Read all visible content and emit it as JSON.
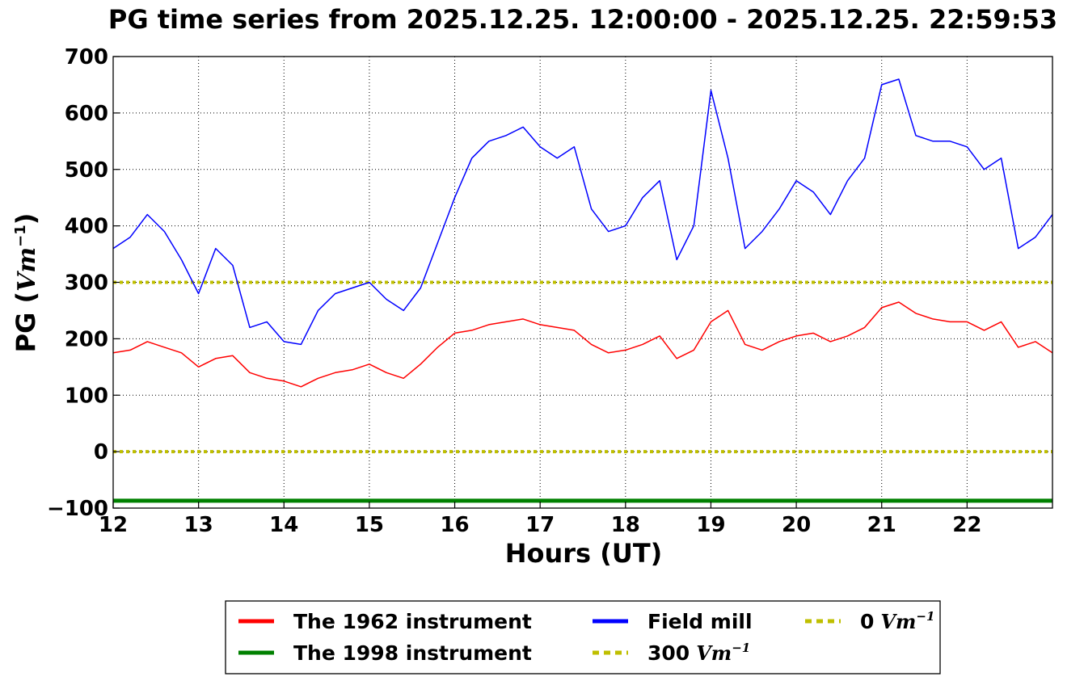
{
  "chart_data": {
    "type": "line",
    "title": "PG time series from 2025.12.25. 12:00:00 - 2025.12.25. 22:59:53",
    "xlabel": "Hours (UT)",
    "ylabel": {
      "prefix": "PG (",
      "unit": "Vm",
      "exp": "−1",
      "suffix": ")"
    },
    "xlim": [
      12,
      23
    ],
    "ylim": [
      -100,
      700
    ],
    "xticks": [
      12,
      13,
      14,
      15,
      16,
      17,
      18,
      19,
      20,
      21,
      22
    ],
    "yticks": [
      -100,
      0,
      100,
      200,
      300,
      400,
      500,
      600,
      700
    ],
    "ytick_labels": [
      "−100",
      "0",
      "100",
      "200",
      "300",
      "400",
      "500",
      "600",
      "700"
    ],
    "grid": true,
    "legend_position": "below chart",
    "series": [
      {
        "name": "The 1962 instrument",
        "color": "#ff0000",
        "x": [
          12.0,
          12.2,
          12.4,
          12.6,
          12.8,
          13.0,
          13.2,
          13.4,
          13.6,
          13.8,
          14.0,
          14.2,
          14.4,
          14.6,
          14.8,
          15.0,
          15.2,
          15.4,
          15.6,
          15.8,
          16.0,
          16.2,
          16.4,
          16.6,
          16.8,
          17.0,
          17.2,
          17.4,
          17.6,
          17.8,
          18.0,
          18.2,
          18.4,
          18.6,
          18.8,
          19.0,
          19.2,
          19.4,
          19.6,
          19.8,
          20.0,
          20.2,
          20.4,
          20.6,
          20.8,
          21.0,
          21.2,
          21.4,
          21.6,
          21.8,
          22.0,
          22.2,
          22.4,
          22.6,
          22.8,
          23.0
        ],
        "values": [
          175,
          180,
          195,
          185,
          175,
          150,
          165,
          170,
          140,
          130,
          125,
          115,
          130,
          140,
          145,
          155,
          140,
          130,
          155,
          185,
          210,
          215,
          225,
          230,
          235,
          225,
          220,
          215,
          190,
          175,
          180,
          190,
          205,
          165,
          180,
          230,
          250,
          190,
          180,
          195,
          205,
          210,
          195,
          205,
          220,
          255,
          265,
          245,
          235,
          230,
          230,
          215,
          230,
          185,
          195,
          175
        ]
      },
      {
        "name": "The 1998 instrument",
        "color": "#008000",
        "x": [
          12.0,
          23.0
        ],
        "values": [
          -87,
          -87
        ]
      },
      {
        "name": "Field mill",
        "color": "#0000ff",
        "x": [
          12.0,
          12.2,
          12.4,
          12.6,
          12.8,
          13.0,
          13.2,
          13.4,
          13.6,
          13.8,
          14.0,
          14.2,
          14.4,
          14.6,
          14.8,
          15.0,
          15.2,
          15.4,
          15.6,
          15.8,
          16.0,
          16.2,
          16.4,
          16.6,
          16.8,
          17.0,
          17.2,
          17.4,
          17.6,
          17.8,
          18.0,
          18.2,
          18.4,
          18.6,
          18.8,
          19.0,
          19.2,
          19.4,
          19.6,
          19.8,
          20.0,
          20.2,
          20.4,
          20.6,
          20.8,
          21.0,
          21.2,
          21.4,
          21.6,
          21.8,
          22.0,
          22.2,
          22.4,
          22.6,
          22.8,
          23.0
        ],
        "values": [
          360,
          380,
          420,
          390,
          340,
          280,
          360,
          330,
          220,
          230,
          195,
          190,
          250,
          280,
          290,
          300,
          270,
          250,
          290,
          370,
          450,
          520,
          550,
          560,
          575,
          540,
          520,
          540,
          430,
          390,
          400,
          450,
          480,
          340,
          400,
          640,
          520,
          360,
          390,
          430,
          480,
          460,
          420,
          480,
          520,
          650,
          660,
          560,
          550,
          550,
          540,
          500,
          520,
          360,
          380,
          420
        ]
      },
      {
        "name": "300 Vm⁻¹",
        "color": "#bfbf00",
        "dashed": true,
        "x": [
          12.0,
          23.0
        ],
        "values": [
          300,
          300
        ]
      },
      {
        "name": "0 Vm⁻¹",
        "color": "#bfbf00",
        "dashed": true,
        "x": [
          12.0,
          23.0
        ],
        "values": [
          0,
          0
        ]
      }
    ],
    "legend": [
      {
        "label": "The 1962 instrument",
        "color": "#ff0000",
        "dashed": false
      },
      {
        "label": "The 1998 instrument",
        "color": "#008000",
        "dashed": false
      },
      {
        "label": "Field mill",
        "color": "#0000ff",
        "dashed": false
      },
      {
        "label": "300",
        "unit": "Vm",
        "exp": "−1",
        "color": "#bfbf00",
        "dashed": true
      },
      {
        "label": "0",
        "unit": "Vm",
        "exp": "−1",
        "color": "#bfbf00",
        "dashed": true
      }
    ]
  }
}
